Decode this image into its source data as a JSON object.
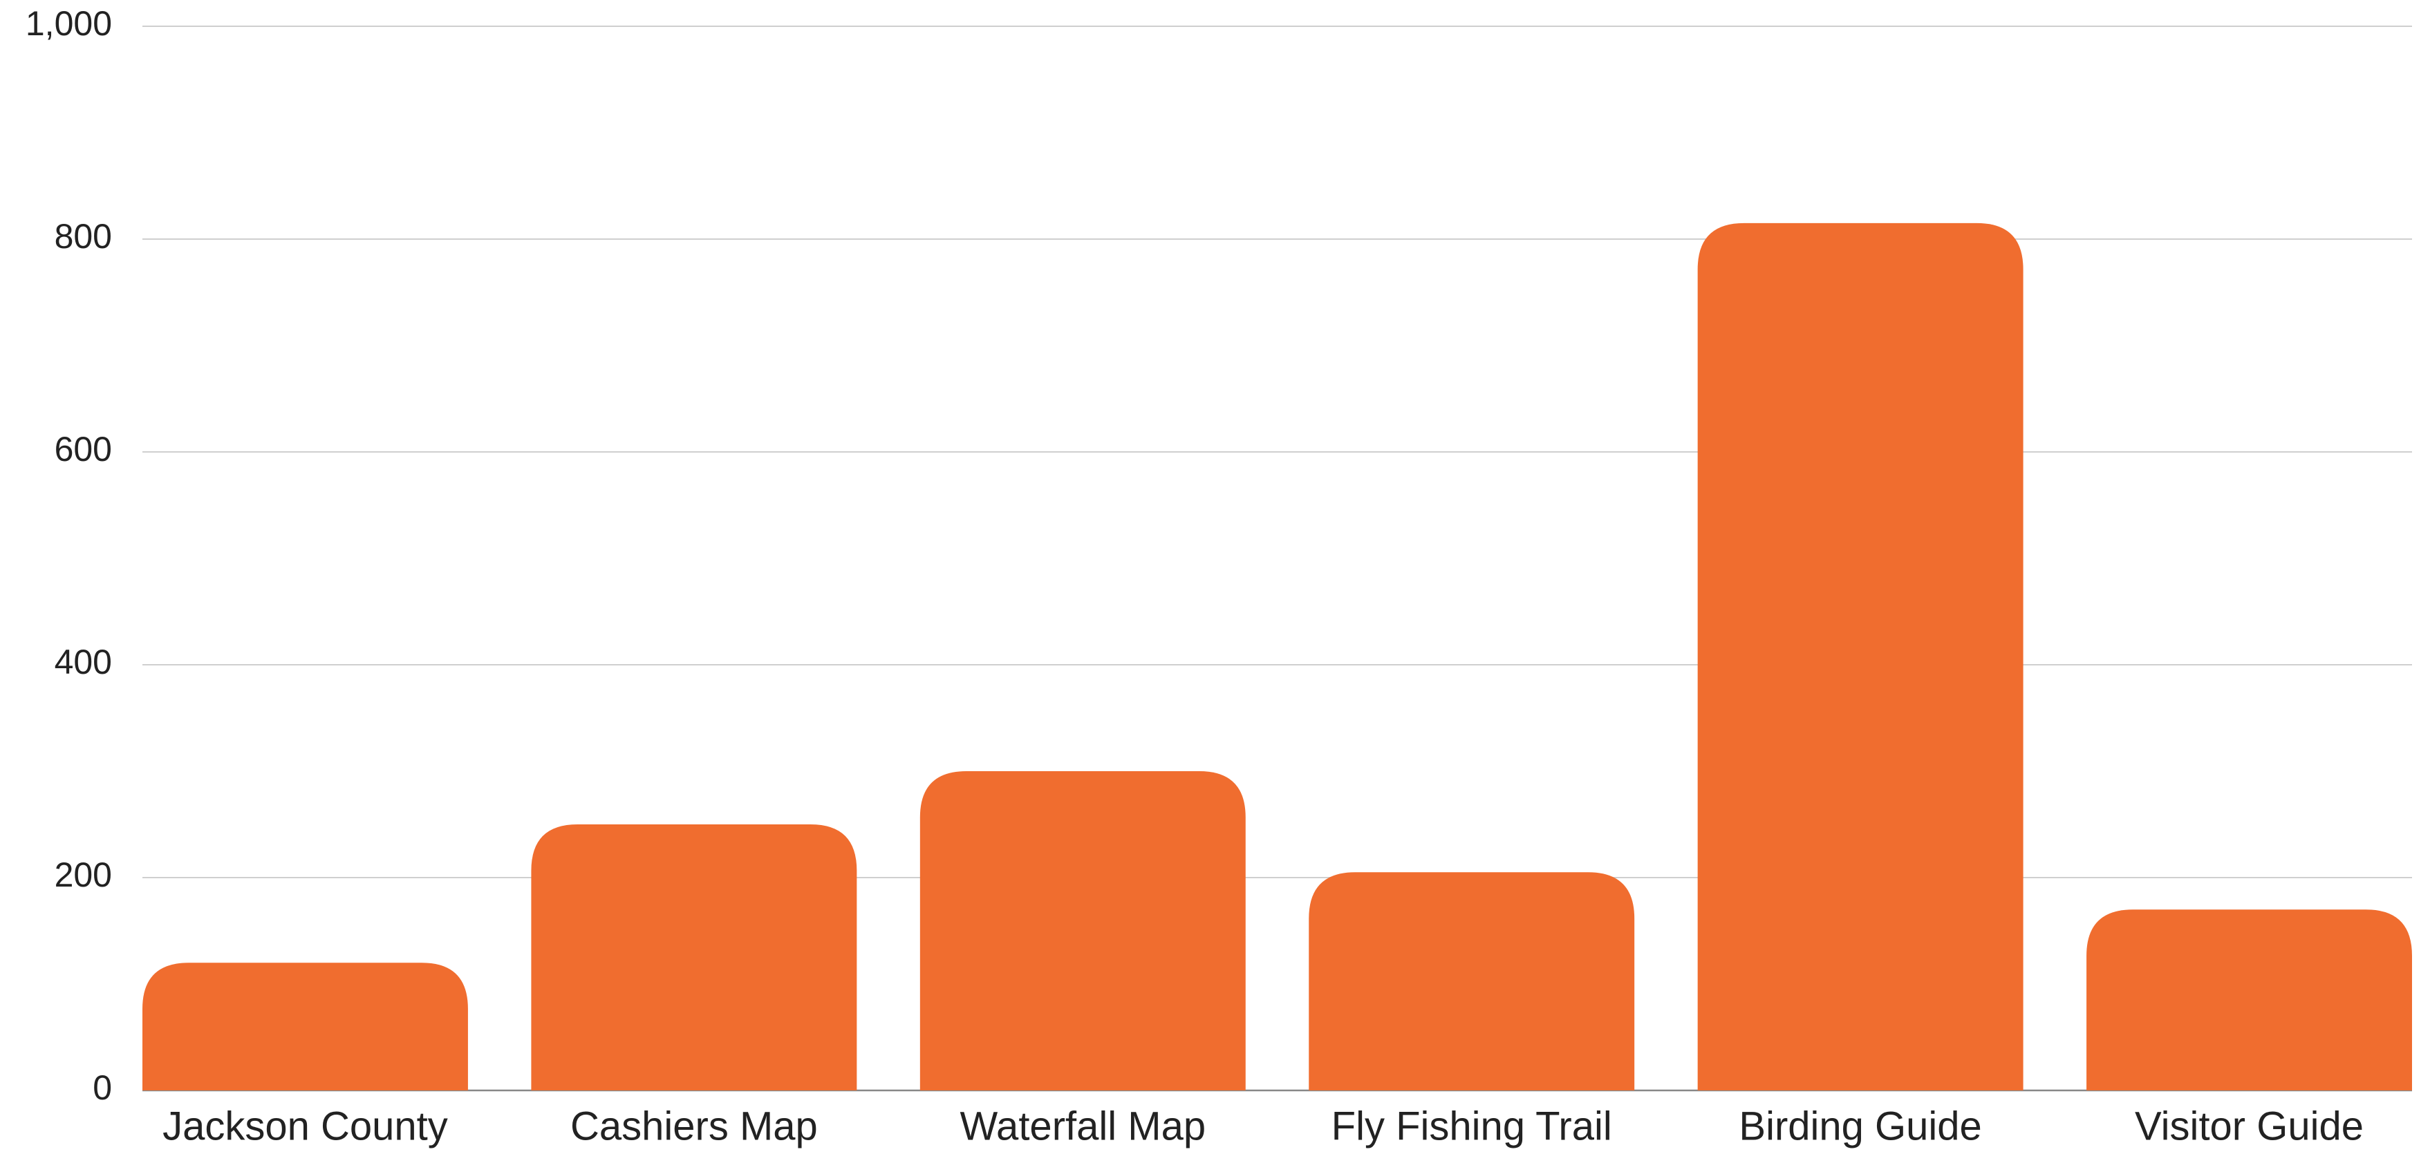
{
  "chart_data": {
    "type": "bar",
    "categories": [
      "Jackson County",
      "Cashiers Map",
      "Waterfall Map",
      "Fly Fishing Trail",
      "Birding Guide",
      "Visitor Guide"
    ],
    "values": [
      120,
      250,
      300,
      205,
      815,
      170
    ],
    "color": "#f06d2f",
    "ylim": [
      0,
      1000
    ],
    "yticks": [
      0,
      200,
      400,
      600,
      800,
      {
        "value": 1000,
        "label": "1,000"
      }
    ],
    "grid": true
  }
}
